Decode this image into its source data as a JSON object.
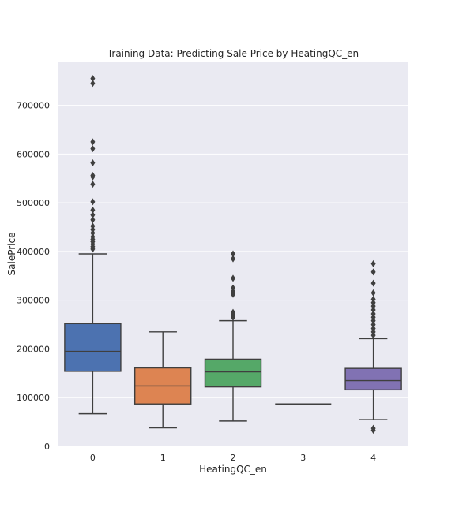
{
  "chart_data": {
    "type": "box",
    "title": "Training Data: Predicting Sale Price by HeatingQC_en",
    "xlabel": "HeatingQC_en",
    "ylabel": "SalePrice",
    "ylim": [
      0,
      790000
    ],
    "yticks": [
      0,
      100000,
      200000,
      300000,
      400000,
      500000,
      600000,
      700000
    ],
    "ytick_labels": [
      "0",
      "100000",
      "200000",
      "300000",
      "400000",
      "500000",
      "600000",
      "700000"
    ],
    "grid": true,
    "boxes": [
      {
        "category": "0",
        "color": "#4c72b0",
        "whisker_low": 67000,
        "q1": 154000,
        "median": 195000,
        "q3": 252000,
        "whisker_high": 395000,
        "outliers": [
          405000,
          410000,
          415000,
          420000,
          425000,
          430000,
          438000,
          445000,
          452000,
          465000,
          475000,
          485000,
          502000,
          538000,
          553000,
          556000,
          582000,
          611000,
          625000,
          745000,
          755000
        ]
      },
      {
        "category": "1",
        "color": "#dd8452",
        "whisker_low": 38000,
        "q1": 87000,
        "median": 124000,
        "q3": 161000,
        "whisker_high": 235000,
        "outliers": []
      },
      {
        "category": "2",
        "color": "#55a868",
        "whisker_low": 52000,
        "q1": 122000,
        "median": 153000,
        "q3": 179000,
        "whisker_high": 258000,
        "outliers": [
          265000,
          270000,
          275000,
          312000,
          318000,
          325000,
          345000,
          385000,
          395000
        ]
      },
      {
        "category": "3",
        "color": "#c44e52",
        "whisker_low": 87000,
        "q1": 87000,
        "median": 87000,
        "q3": 87000,
        "whisker_high": 87000,
        "outliers": []
      },
      {
        "category": "4",
        "color": "#8172b3",
        "whisker_low": 55000,
        "q1": 116000,
        "median": 135000,
        "q3": 160000,
        "whisker_high": 221000,
        "outliers": [
          33000,
          37000,
          228000,
          235000,
          242000,
          250000,
          258000,
          265000,
          272000,
          280000,
          288000,
          295000,
          302000,
          315000,
          335000,
          358000,
          375000
        ]
      }
    ]
  }
}
